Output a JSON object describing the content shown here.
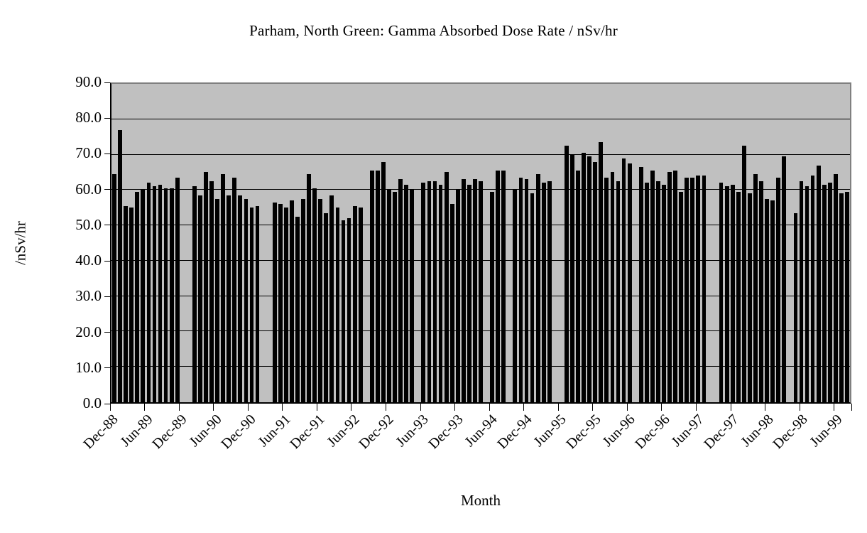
{
  "chart_data": {
    "type": "bar",
    "title": "Parham, North Green: Gamma Absorbed Dose Rate / nSv/hr",
    "xlabel": "Month",
    "ylabel": "/nSv/hr",
    "ylim": [
      0,
      90
    ],
    "ytick_step": 10,
    "yticks": [
      "90.0",
      "80.0",
      "70.0",
      "60.0",
      "50.0",
      "40.0",
      "30.0",
      "20.0",
      "10.0",
      "0.0"
    ],
    "grid": "horizontal",
    "legend": "none",
    "plot_bg_color": "#c0c0c0",
    "bar_color": "#000000",
    "n_points": 129,
    "x_start_month": "Dec-88",
    "x_ticks": [
      {
        "label": "Dec-88",
        "index": 0
      },
      {
        "label": "Jun-89",
        "index": 6
      },
      {
        "label": "Dec-89",
        "index": 12
      },
      {
        "label": "Jun-90",
        "index": 18
      },
      {
        "label": "Dec-90",
        "index": 24
      },
      {
        "label": "Jun-91",
        "index": 30
      },
      {
        "label": "Dec-91",
        "index": 36
      },
      {
        "label": "Jun-92",
        "index": 42
      },
      {
        "label": "Dec-92",
        "index": 48
      },
      {
        "label": "Jun-93",
        "index": 54
      },
      {
        "label": "Dec-93",
        "index": 60
      },
      {
        "label": "Jun-94",
        "index": 66
      },
      {
        "label": "Dec-94",
        "index": 72
      },
      {
        "label": "Jun-95",
        "index": 78
      },
      {
        "label": "Dec-95",
        "index": 84
      },
      {
        "label": "Jun-96",
        "index": 90
      },
      {
        "label": "Dec-96",
        "index": 96
      },
      {
        "label": "Jun-97",
        "index": 102
      },
      {
        "label": "Dec-97",
        "index": 108
      },
      {
        "label": "Jun-98",
        "index": 114
      },
      {
        "label": "Dec-98",
        "index": 120
      },
      {
        "label": "Jun-99",
        "index": 126
      }
    ],
    "values": [
      64.5,
      77,
      55.5,
      55,
      59.5,
      60,
      62,
      61,
      61.5,
      60.5,
      60.5,
      63.5,
      null,
      null,
      61,
      58.5,
      65,
      62.5,
      57.5,
      64.5,
      58.5,
      63.5,
      58.5,
      57.5,
      55,
      55.5,
      null,
      null,
      56.5,
      56,
      55,
      57,
      52.5,
      57.5,
      64.5,
      60.5,
      57.5,
      53.5,
      58.5,
      55,
      51.5,
      52,
      55.5,
      55,
      null,
      65.5,
      65.5,
      68,
      60,
      59.5,
      63,
      61.5,
      60,
      null,
      62,
      62.5,
      62.5,
      61.5,
      65,
      56,
      60,
      63,
      61.5,
      63,
      62.5,
      null,
      59.5,
      65.5,
      65.5,
      null,
      60,
      63.5,
      63,
      59,
      64.5,
      62,
      62.5,
      null,
      null,
      72.5,
      70,
      65.5,
      70.5,
      69.5,
      68,
      73.5,
      63.5,
      65,
      62.5,
      69,
      67.5,
      null,
      66.5,
      62,
      65.5,
      62.5,
      61.5,
      65,
      65.5,
      59.5,
      63.5,
      63.5,
      64,
      64,
      null,
      null,
      62,
      61,
      61.5,
      59.5,
      72.5,
      59,
      64.5,
      62.5,
      57.5,
      57,
      63.5,
      69.5,
      null,
      53.5,
      62.5,
      61,
      64,
      67,
      61.5,
      62,
      64.5,
      59,
      59.5
    ]
  }
}
